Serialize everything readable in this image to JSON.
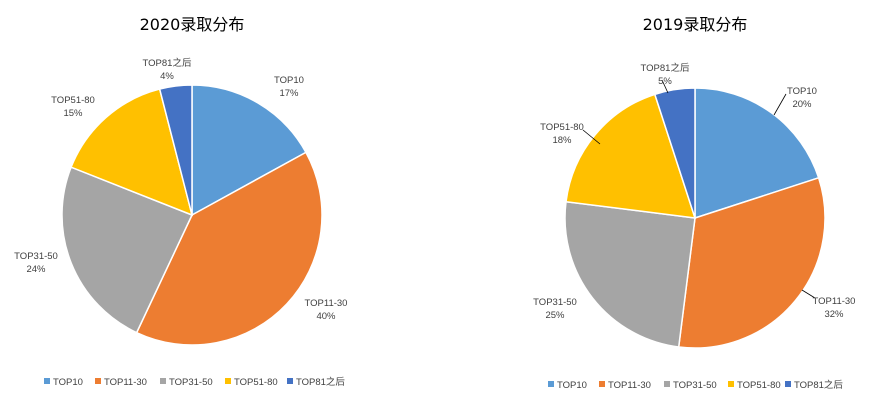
{
  "chart_data": [
    {
      "type": "pie",
      "title": "2020录取分布",
      "slices": [
        {
          "label": "TOP10",
          "value": 17,
          "pct_label": "17%",
          "color": "#5B9BD5"
        },
        {
          "label": "TOP11-30",
          "value": 40,
          "pct_label": "40%",
          "color": "#ED7D31"
        },
        {
          "label": "TOP31-50",
          "value": 24,
          "pct_label": "24%",
          "color": "#A5A5A5"
        },
        {
          "label": "TOP51-80",
          "value": 15,
          "pct_label": "15%",
          "color": "#FFC000"
        },
        {
          "label": "TOP81之后",
          "value": 4,
          "pct_label": "4%",
          "color": "#4472C4"
        }
      ],
      "legend": [
        "TOP10",
        "TOP11-30",
        "TOP31-50",
        "TOP51-80",
        "TOP81之后"
      ],
      "legend_position": "bottom"
    },
    {
      "type": "pie",
      "title": "2019录取分布",
      "slices": [
        {
          "label": "TOP10",
          "value": 20,
          "pct_label": "20%",
          "color": "#5B9BD5"
        },
        {
          "label": "TOP11-30",
          "value": 32,
          "pct_label": "32%",
          "color": "#ED7D31"
        },
        {
          "label": "TOP31-50",
          "value": 25,
          "pct_label": "25%",
          "color": "#A5A5A5"
        },
        {
          "label": "TOP51-80",
          "value": 18,
          "pct_label": "18%",
          "color": "#FFC000"
        },
        {
          "label": "TOP81之后",
          "value": 5,
          "pct_label": "5%",
          "color": "#4472C4"
        }
      ],
      "legend": [
        "TOP10",
        "TOP11-30",
        "TOP31-50",
        "TOP51-80",
        "TOP81之后"
      ],
      "legend_position": "bottom"
    }
  ]
}
